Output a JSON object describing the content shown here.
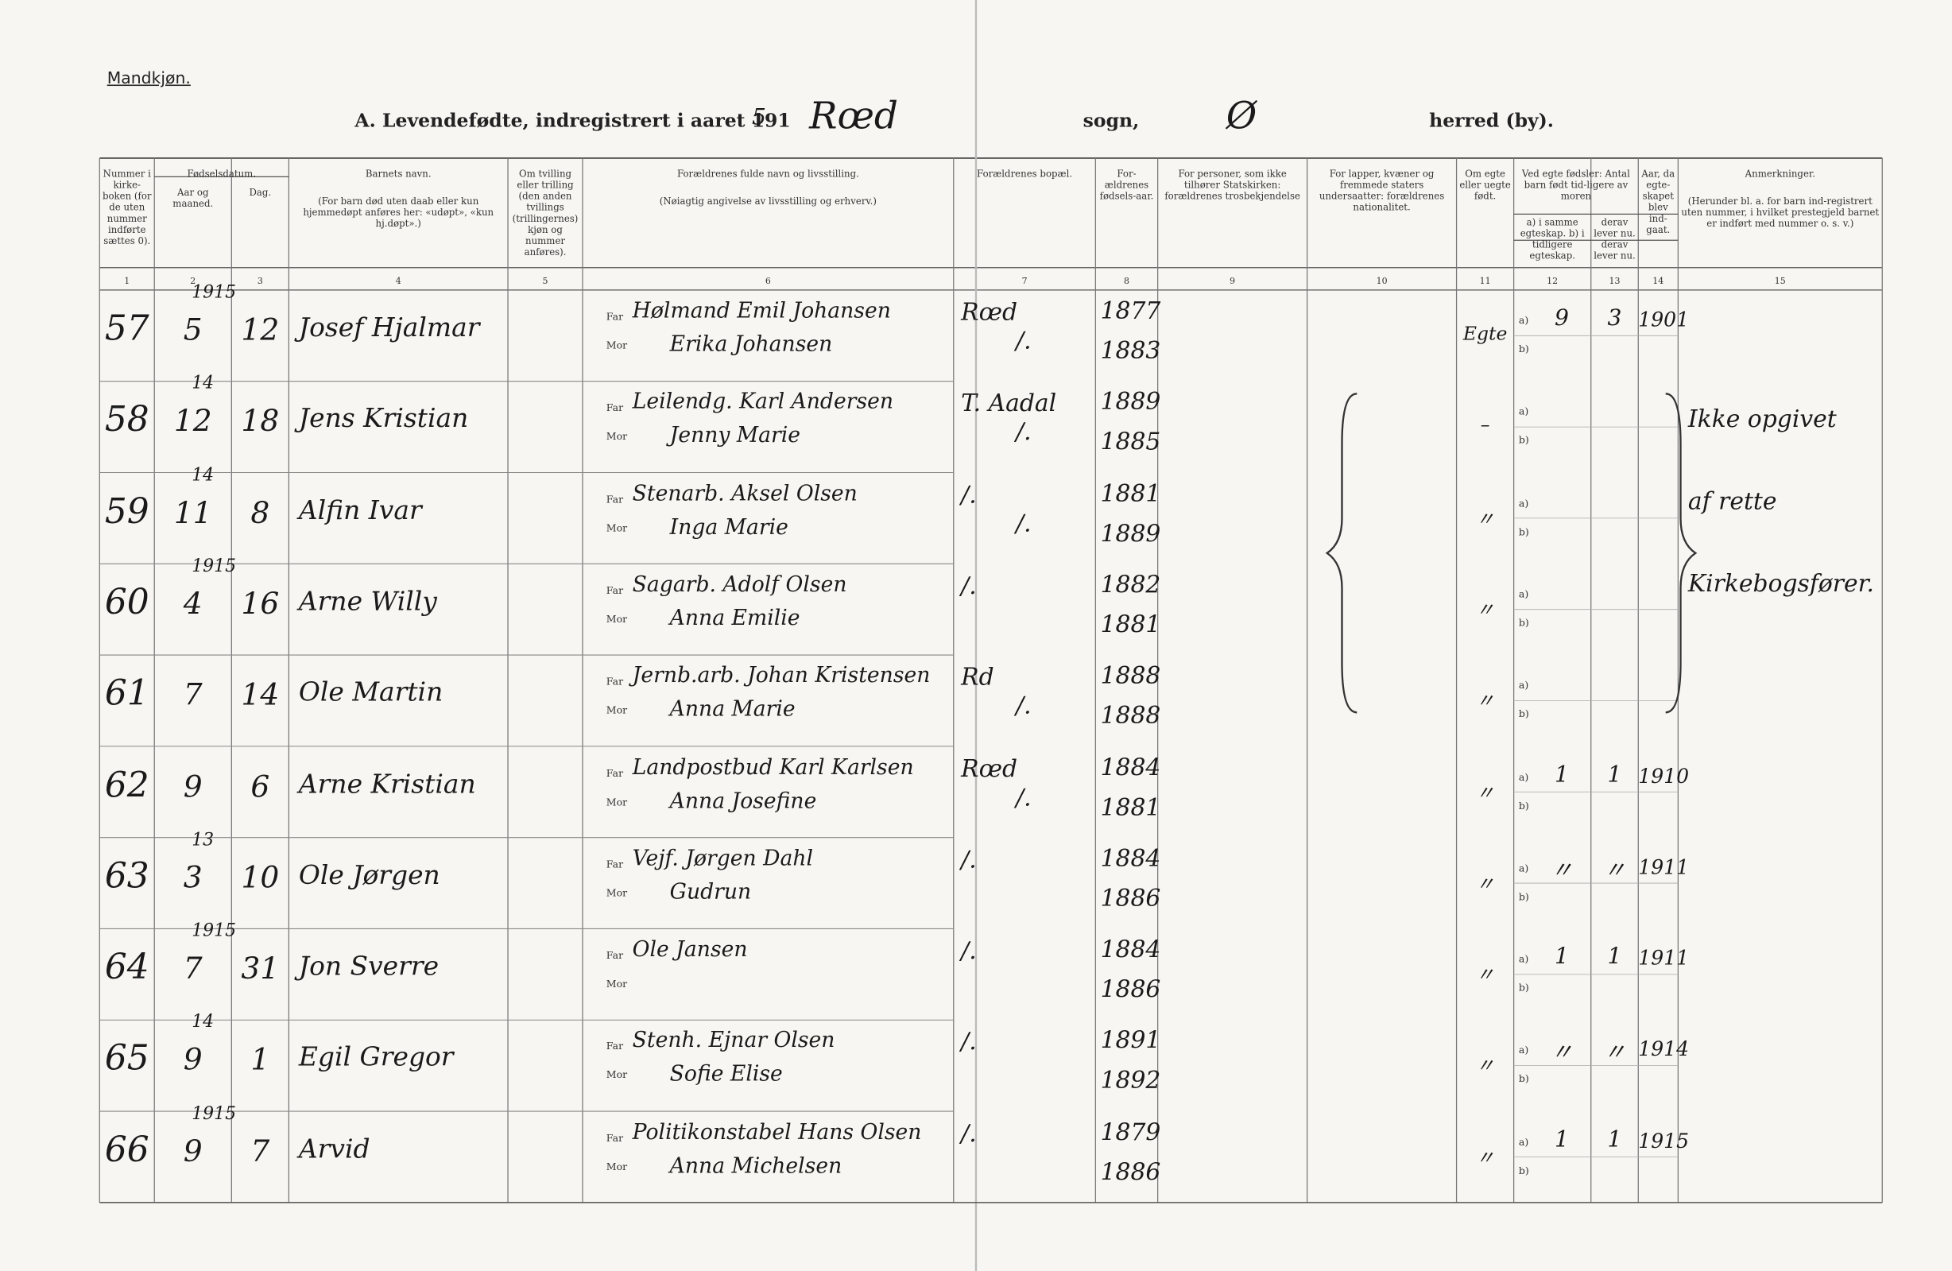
{
  "header": {
    "corner": "Mandkjøn.",
    "title": "A.  Levendefødte, indregistrert i aaret 191",
    "year_digit": "5",
    "parish": "Rœd",
    "sogn": "sogn,",
    "herred": "Ø",
    "herred_label": "herred (by)."
  },
  "columns": [
    {
      "number": "1",
      "text": "Nummer i kirke-boken (for de uten nummer indførte sættes 0)."
    },
    {
      "number": "2",
      "text": "Aar og maaned."
    },
    {
      "number": "3",
      "text": "Dag."
    },
    {
      "number": "4",
      "text": "Barnets navn.",
      "note": "(For barn død uten daab eller kun hjemmedøpt anføres her: «udøpt», «kun hj.døpt».)"
    },
    {
      "number": "5",
      "text": "Om tvilling eller trilling (den anden tvillings (trillingernes) kjøn og nummer anføres)."
    },
    {
      "number": "6",
      "text": "Forældrenes fulde navn og livsstilling.",
      "note": "(Nøiagtig angivelse av livsstilling og erhverv.)"
    },
    {
      "number": "7",
      "text": "Forældrenes bopæl."
    },
    {
      "number": "8",
      "text": "For-ældrenes fødsels-aar."
    },
    {
      "number": "9",
      "text": "For personer, som ikke tilhører Statskirken: forældrenes trosbekjendelse"
    },
    {
      "number": "10",
      "text": "For lapper, kvæner og fremmede staters undersaatter: forældrenes nationalitet."
    },
    {
      "number": "11",
      "text": "Om egte eller uegte født."
    },
    {
      "number": "12",
      "text": "a) i samme egteskap. b) i tidligere egteskap."
    },
    {
      "number": "13",
      "text": "derav lever nu. derav lever nu."
    },
    {
      "number": "14",
      "text": "Aar, da egte-skapet blev ind-gaat."
    },
    {
      "number": "15",
      "text": "Anmerkninger.",
      "note": "(Herunder bl. a. for barn ind-registrert uten nummer, i hvilket prestegjeld barnet er indført med nummer o. s. v.)"
    }
  ],
  "group_birthdate": "Fødselsdatum.",
  "group_children": "Ved egte fødsler: Antal barn født tid-ligere av moren",
  "far": "Far",
  "mor": "Mor",
  "a": "a)",
  "b": "b)",
  "rows": [
    {
      "number": "57",
      "date_note": "1915",
      "month": "5",
      "day": "12",
      "name": "Josef Hjalmar",
      "father": "Hølmand Emil Johansen",
      "mother": "Erika Johansen",
      "res_father": "Rœd",
      "res_mother": "/.",
      "father_year": "1877",
      "mother_year": "1883",
      "legitimacy": "Egte",
      "children": "9",
      "alive": "3",
      "marriage_year": "1901"
    },
    {
      "number": "58",
      "date_note": "14",
      "month": "12",
      "day": "18",
      "name": "Jens Kristian",
      "father": "Leilendg. Karl Andersen",
      "mother": "Jenny Marie",
      "res_father": "T. Aadal",
      "res_mother": "/.",
      "father_year": "1889",
      "mother_year": "1885",
      "legitimacy": "–"
    },
    {
      "number": "59",
      "date_note": "14",
      "month": "11",
      "day": "8",
      "name": "Alfin Ivar",
      "father": "Stenarb. Aksel Olsen",
      "mother": "Inga Marie",
      "res_father": "/.",
      "res_mother": "/.",
      "father_year": "1881",
      "mother_year": "1889",
      "legitimacy": "〃"
    },
    {
      "number": "60",
      "date_note": "1915",
      "month": "4",
      "day": "16",
      "name": "Arne Willy",
      "father": "Sagarb. Adolf Olsen",
      "mother": "Anna Emilie",
      "res_father": "/.",
      "father_year": "1882",
      "mother_year": "1881",
      "legitimacy": "〃"
    },
    {
      "number": "61",
      "month": "7",
      "day": "14",
      "name": "Ole Martin",
      "father": "Jernb.arb. Johan Kristensen",
      "mother": "Anna Marie",
      "res_father": "Rd",
      "res_mother": "/.",
      "father_year": "1888",
      "mother_year": "1888",
      "legitimacy": "〃"
    },
    {
      "number": "62",
      "month": "9",
      "day": "6",
      "name": "Arne Kristian",
      "father": "Landpostbud Karl Karlsen",
      "mother": "Anna Josefine",
      "res_father": "Rœd",
      "res_mother": "/.",
      "father_year": "1884",
      "mother_year": "1881",
      "legitimacy": "〃",
      "children": "1",
      "alive": "1",
      "marriage_year": "1910"
    },
    {
      "number": "63",
      "date_note": "13",
      "month": "3",
      "day": "10",
      "name": "Ole Jørgen",
      "father": "Vejf. Jørgen Dahl",
      "mother": "Gudrun",
      "res_father": "/.",
      "father_year": "1884",
      "mother_year": "1886",
      "legitimacy": "〃",
      "children": "〃",
      "alive": "〃",
      "marriage_year": "1911"
    },
    {
      "number": "64",
      "date_note": "1915",
      "month": "7",
      "day": "31",
      "name": "Jon Sverre",
      "father": "Ole Jansen",
      "res_father": "/.",
      "father_year": "1884",
      "mother_year": "1886",
      "legitimacy": "〃",
      "children": "1",
      "alive": "1",
      "marriage_year": "1911"
    },
    {
      "number": "65",
      "date_note": "14",
      "month": "9",
      "day": "1",
      "name": "Egil Gregor",
      "father": "Stenh. Ejnar Olsen",
      "mother": "Sofie Elise",
      "res_father": "/.",
      "father_year": "1891",
      "mother_year": "1892",
      "legitimacy": "〃",
      "children": "〃",
      "alive": "〃",
      "marriage_year": "1914"
    },
    {
      "number": "66",
      "date_note": "1915",
      "month": "9",
      "day": "7",
      "name": "Arvid",
      "father": "Politikonstabel Hans Olsen",
      "mother": "Anna Michelsen",
      "res_father": "/.",
      "father_year": "1879",
      "mother_year": "1886",
      "legitimacy": "〃",
      "children": "1",
      "alive": "1",
      "marriage_year": "1915"
    }
  ],
  "remark": [
    "Ikke opgivet",
    "af rette",
    "Kirkebogsfører."
  ]
}
